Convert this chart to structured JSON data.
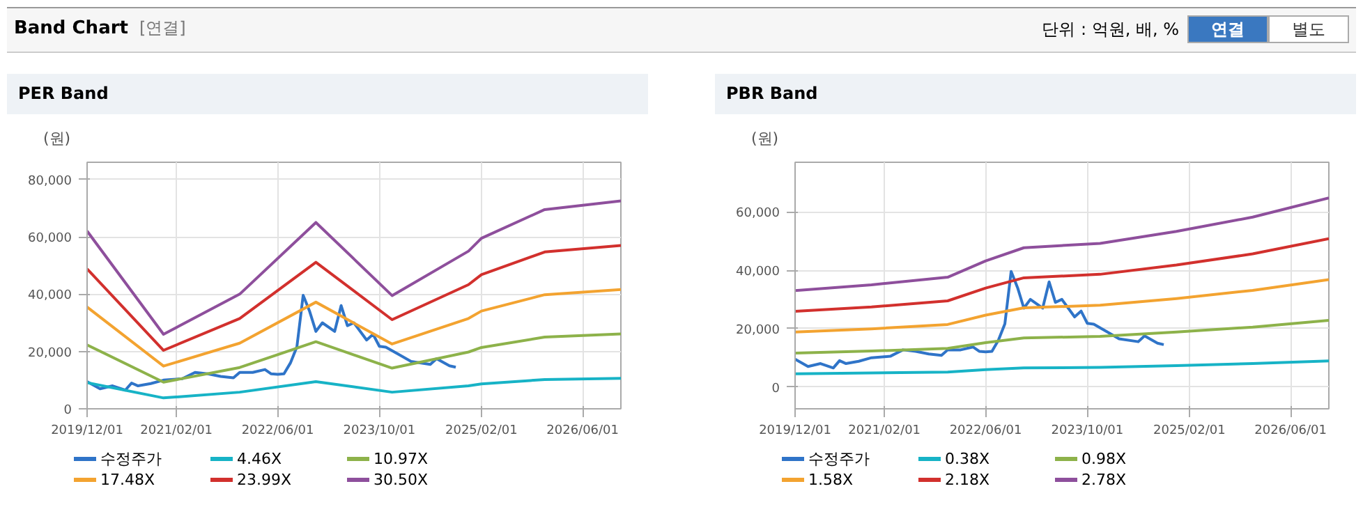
{
  "chart_data": [
    {
      "type": "line",
      "title": "PER Band",
      "ylabel": "(원)",
      "annotations": [
        "Band Chart",
        "[연결]",
        "단위 : 억원, 배, %",
        "연결",
        "별도"
      ],
      "xlim": [
        "2019-12-01",
        "2026-12-01"
      ],
      "ylim": [
        0,
        86000
      ],
      "xticks": [
        {
          "value": "2019-12-01",
          "label": "2019/12/01"
        },
        {
          "value": "2021-02-01",
          "label": "2021/02/01"
        },
        {
          "value": "2022-06-01",
          "label": "2022/06/01"
        },
        {
          "value": "2023-10-01",
          "label": "2023/10/01"
        },
        {
          "value": "2025-02-01",
          "label": "2025/02/01"
        },
        {
          "value": "2026-06-01",
          "label": "2026/06/01"
        }
      ],
      "yticks": [
        {
          "value": 0,
          "label": "0"
        },
        {
          "value": 20000,
          "label": "20,000"
        },
        {
          "value": 40000,
          "label": "40,000"
        },
        {
          "value": 60000,
          "label": "60,000"
        },
        {
          "value": 80000,
          "label": "80,000"
        }
      ],
      "grid": true,
      "legend": "bottom",
      "marker": "none",
      "line_style": "solid",
      "x": [
        "2019-12",
        "2020-12",
        "2021-12",
        "2022-12",
        "2023-12",
        "2024-12",
        "2025-02",
        "2025-12",
        "2026-12"
      ],
      "series": [
        {
          "name": "수정주가",
          "color": "#2f74c8",
          "x": [
            "2019-12",
            "2020-02",
            "2020-04",
            "2020-06",
            "2020-07",
            "2020-08",
            "2020-10",
            "2020-12",
            "2021-03",
            "2021-05",
            "2021-07",
            "2021-09",
            "2021-11",
            "2021-12",
            "2022-02",
            "2022-04",
            "2022-05",
            "2022-06",
            "2022-07",
            "2022-08",
            "2022-09",
            "2022-10",
            "2022-11",
            "2022-12",
            "2023-01",
            "2023-03",
            "2023-04",
            "2023-05",
            "2023-06",
            "2023-08",
            "2023-09",
            "2023-10",
            "2023-11",
            "2024-01",
            "2024-03",
            "2024-06",
            "2024-07",
            "2024-09",
            "2024-10"
          ],
          "values": [
            9500,
            7000,
            8000,
            6500,
            9000,
            8000,
            8800,
            10000,
            10500,
            12700,
            12200,
            11300,
            10800,
            12700,
            12700,
            13700,
            12200,
            12000,
            12200,
            16000,
            21600,
            39600,
            34000,
            27000,
            30000,
            27000,
            36000,
            29000,
            30000,
            24000,
            26000,
            21800,
            21500,
            19000,
            16500,
            15500,
            17500,
            15000,
            14500
          ]
        },
        {
          "name": "4.46X",
          "color": "#17b3c6",
          "values": [
            9100,
            3800,
            5800,
            9500,
            5800,
            8000,
            8700,
            10200,
            10600
          ]
        },
        {
          "name": "10.97X",
          "color": "#8db24a",
          "values": [
            22300,
            9300,
            14400,
            23400,
            14200,
            19800,
            21400,
            25000,
            26100
          ]
        },
        {
          "name": "17.48X",
          "color": "#f3a330",
          "values": [
            35500,
            14900,
            22900,
            37200,
            22600,
            31500,
            34100,
            39800,
            41600
          ]
        },
        {
          "name": "23.99X",
          "color": "#d2302d",
          "values": [
            48800,
            20400,
            31500,
            51100,
            31100,
            43300,
            46800,
            54700,
            57000
          ]
        },
        {
          "name": "30.50X",
          "color": "#8e4f9c",
          "values": [
            62000,
            26000,
            40000,
            65000,
            39500,
            55000,
            59500,
            69500,
            72500
          ]
        }
      ]
    },
    {
      "type": "line",
      "title": "PBR Band",
      "ylabel": "(원)",
      "xlim": [
        "2019-12-01",
        "2026-12-01"
      ],
      "ylim": [
        -7500,
        77000
      ],
      "xticks": [
        {
          "value": "2019-12-01",
          "label": "2019/12/01"
        },
        {
          "value": "2021-02-01",
          "label": "2021/02/01"
        },
        {
          "value": "2022-06-01",
          "label": "2022/06/01"
        },
        {
          "value": "2023-10-01",
          "label": "2023/10/01"
        },
        {
          "value": "2025-02-01",
          "label": "2025/02/01"
        },
        {
          "value": "2026-06-01",
          "label": "2026/06/01"
        }
      ],
      "yticks": [
        {
          "value": 0,
          "label": "0"
        },
        {
          "value": 20000,
          "label": "20,000"
        },
        {
          "value": 40000,
          "label": "40,000"
        },
        {
          "value": 60000,
          "label": "60,000"
        }
      ],
      "grid": true,
      "legend": "bottom",
      "marker": "none",
      "line_style": "solid",
      "x": [
        "2019-12",
        "2020-12",
        "2021-12",
        "2022-06",
        "2022-12",
        "2023-12",
        "2024-12",
        "2025-12",
        "2026-12"
      ],
      "series": [
        {
          "name": "수정주가",
          "color": "#2f74c8",
          "x": [
            "2019-12",
            "2020-02",
            "2020-04",
            "2020-06",
            "2020-07",
            "2020-08",
            "2020-10",
            "2020-12",
            "2021-03",
            "2021-05",
            "2021-07",
            "2021-09",
            "2021-11",
            "2021-12",
            "2022-02",
            "2022-04",
            "2022-05",
            "2022-06",
            "2022-07",
            "2022-08",
            "2022-09",
            "2022-10",
            "2022-11",
            "2022-12",
            "2023-01",
            "2023-03",
            "2023-04",
            "2023-05",
            "2023-06",
            "2023-08",
            "2023-09",
            "2023-10",
            "2023-11",
            "2024-01",
            "2024-03",
            "2024-06",
            "2024-07",
            "2024-09",
            "2024-10"
          ],
          "values": [
            9500,
            7000,
            8000,
            6500,
            9000,
            8000,
            8800,
            10000,
            10500,
            12700,
            12200,
            11300,
            10800,
            12700,
            12700,
            13700,
            12200,
            12000,
            12200,
            16000,
            21600,
            39600,
            34000,
            27000,
            30000,
            27000,
            36000,
            29000,
            30000,
            24000,
            26000,
            21800,
            21500,
            19000,
            16500,
            15500,
            17500,
            15000,
            14500
          ]
        },
        {
          "name": "0.38X",
          "color": "#17b3c6",
          "values": [
            4500,
            4800,
            5100,
            5900,
            6500,
            6700,
            7300,
            8000,
            8900
          ]
        },
        {
          "name": "0.98X",
          "color": "#8db24a",
          "values": [
            11600,
            12300,
            13200,
            15200,
            16800,
            17300,
            18800,
            20500,
            22800
          ]
        },
        {
          "name": "1.58X",
          "color": "#f3a330",
          "values": [
            18800,
            19900,
            21400,
            24600,
            27100,
            28000,
            30300,
            33100,
            36800
          ]
        },
        {
          "name": "2.18X",
          "color": "#d2302d",
          "values": [
            25900,
            27400,
            29500,
            33900,
            37400,
            38600,
            41800,
            45600,
            50800
          ]
        },
        {
          "name": "2.78X",
          "color": "#8e4f9c",
          "values": [
            33000,
            35000,
            37600,
            43200,
            47700,
            49200,
            53300,
            58200,
            64800
          ]
        }
      ]
    }
  ]
}
